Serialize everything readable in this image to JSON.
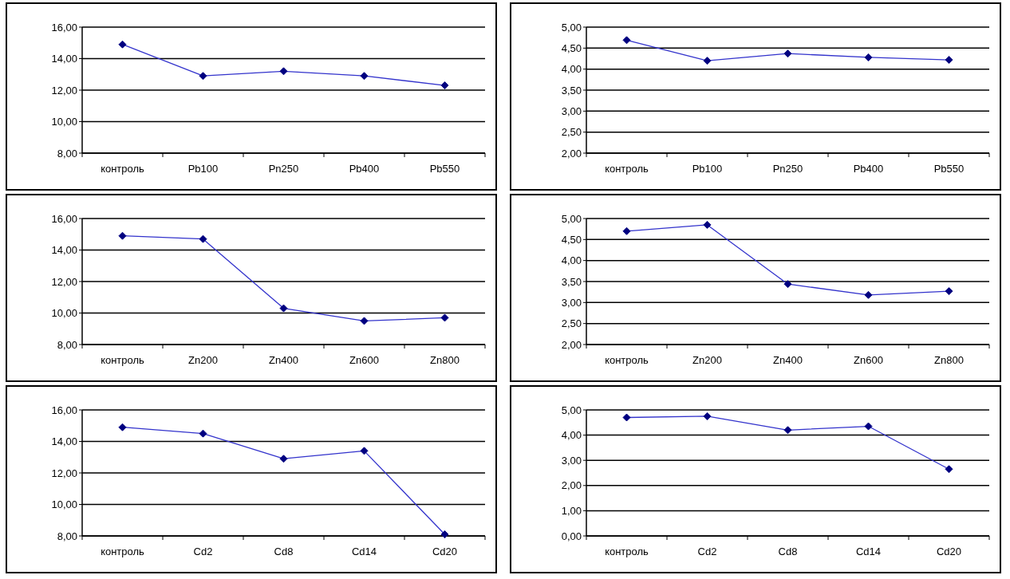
{
  "chart_data": [
    {
      "type": "line",
      "categories": [
        "контроль",
        "Pb100",
        "Pn250",
        "Pb400",
        "Pb550"
      ],
      "series": [
        {
          "color": "#000080",
          "values": [
            14.9,
            12.9,
            13.2,
            12.9,
            12.3
          ]
        }
      ],
      "ylim": [
        8,
        16
      ],
      "yticks": [
        {
          "value": 8,
          "label": "8,00"
        },
        {
          "value": 10,
          "label": "10,00"
        },
        {
          "value": 12,
          "label": "12,00"
        },
        {
          "value": 14,
          "label": "14,00"
        },
        {
          "value": 16,
          "label": "16,00"
        }
      ],
      "grid": "y",
      "marker": "diamond"
    },
    {
      "type": "line",
      "categories": [
        "контроль",
        "Pb100",
        "Pn250",
        "Pb400",
        "Pb550"
      ],
      "series": [
        {
          "color": "#000080",
          "values": [
            4.69,
            4.2,
            4.37,
            4.28,
            4.22
          ]
        }
      ],
      "ylim": [
        2,
        5
      ],
      "yticks": [
        {
          "value": 2,
          "label": "2,00"
        },
        {
          "value": 2.5,
          "label": "2,50"
        },
        {
          "value": 3,
          "label": "3,00"
        },
        {
          "value": 3.5,
          "label": "3,50"
        },
        {
          "value": 4,
          "label": "4,00"
        },
        {
          "value": 4.5,
          "label": "4,50"
        },
        {
          "value": 5,
          "label": "5,00"
        }
      ],
      "grid": "y",
      "marker": "diamond"
    },
    {
      "type": "line",
      "categories": [
        "контроль",
        "Zn200",
        "Zn400",
        "Zn600",
        "Zn800"
      ],
      "series": [
        {
          "color": "#000080",
          "values": [
            14.9,
            14.7,
            10.3,
            9.5,
            9.7
          ]
        }
      ],
      "ylim": [
        8,
        16
      ],
      "yticks": [
        {
          "value": 8,
          "label": "8,00"
        },
        {
          "value": 10,
          "label": "10,00"
        },
        {
          "value": 12,
          "label": "12,00"
        },
        {
          "value": 14,
          "label": "14,00"
        },
        {
          "value": 16,
          "label": "16,00"
        }
      ],
      "grid": "y",
      "marker": "diamond"
    },
    {
      "type": "line",
      "categories": [
        "контроль",
        "Zn200",
        "Zn400",
        "Zn600",
        "Zn800"
      ],
      "series": [
        {
          "color": "#000080",
          "values": [
            4.7,
            4.85,
            3.44,
            3.18,
            3.27
          ]
        }
      ],
      "ylim": [
        2,
        5
      ],
      "yticks": [
        {
          "value": 2,
          "label": "2,00"
        },
        {
          "value": 2.5,
          "label": "2,50"
        },
        {
          "value": 3,
          "label": "3,00"
        },
        {
          "value": 3.5,
          "label": "3,50"
        },
        {
          "value": 4,
          "label": "4,00"
        },
        {
          "value": 4.5,
          "label": "4,50"
        },
        {
          "value": 5,
          "label": "5,00"
        }
      ],
      "grid": "y",
      "marker": "diamond"
    },
    {
      "type": "line",
      "categories": [
        "контроль",
        "Cd2",
        "Cd8",
        "Cd14",
        "Cd20"
      ],
      "series": [
        {
          "color": "#000080",
          "values": [
            14.9,
            14.5,
            12.9,
            13.4,
            8.1
          ]
        }
      ],
      "ylim": [
        8,
        16
      ],
      "yticks": [
        {
          "value": 8,
          "label": "8,00"
        },
        {
          "value": 10,
          "label": "10,00"
        },
        {
          "value": 12,
          "label": "12,00"
        },
        {
          "value": 14,
          "label": "14,00"
        },
        {
          "value": 16,
          "label": "16,00"
        }
      ],
      "grid": "y",
      "marker": "diamond"
    },
    {
      "type": "line",
      "categories": [
        "контроль",
        "Cd2",
        "Cd8",
        "Cd14",
        "Cd20"
      ],
      "series": [
        {
          "color": "#000080",
          "values": [
            4.7,
            4.75,
            4.2,
            4.35,
            2.65
          ]
        }
      ],
      "ylim": [
        0,
        5
      ],
      "yticks": [
        {
          "value": 0,
          "label": "0,00"
        },
        {
          "value": 1,
          "label": "1,00"
        },
        {
          "value": 2,
          "label": "2,00"
        },
        {
          "value": 3,
          "label": "3,00"
        },
        {
          "value": 4,
          "label": "4,00"
        },
        {
          "value": 5,
          "label": "5,00"
        }
      ],
      "grid": "y",
      "marker": "diamond"
    }
  ]
}
